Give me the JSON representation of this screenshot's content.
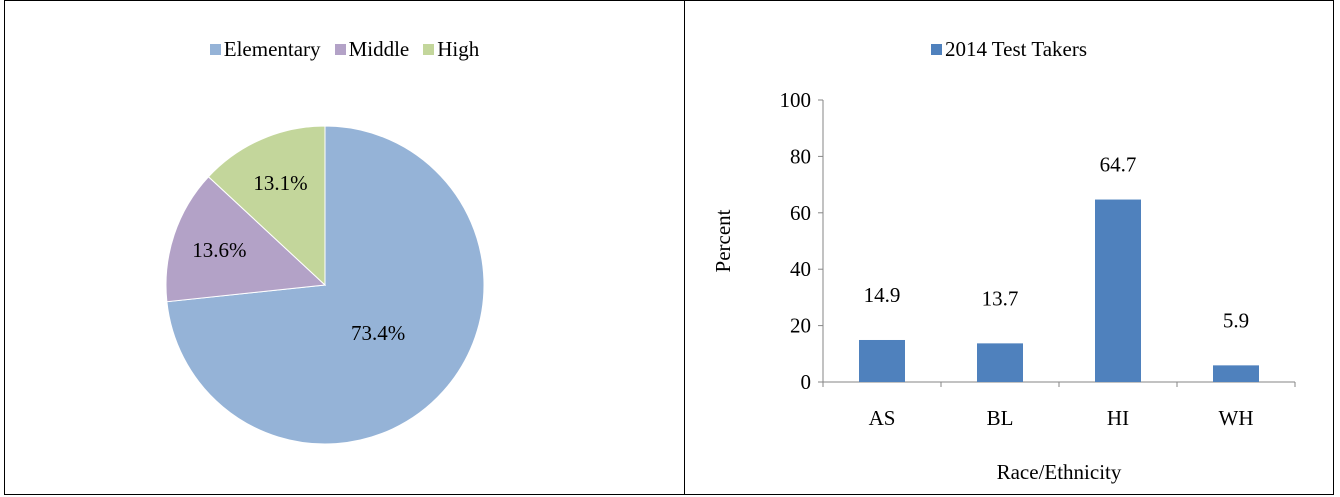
{
  "chart_data": [
    {
      "type": "pie",
      "title": "",
      "categories": [
        "Elementary",
        "Middle",
        "High"
      ],
      "values": [
        73.4,
        13.6,
        13.1
      ],
      "labels": [
        "73.4%",
        "13.6%",
        "13.1%"
      ],
      "colors": [
        "#95b3d7",
        "#b3a2c7",
        "#c3d69b"
      ],
      "legend_position": "top",
      "legend": [
        {
          "label": "Elementary",
          "color": "#95b3d7"
        },
        {
          "label": "Middle",
          "color": "#b3a2c7"
        },
        {
          "label": "High",
          "color": "#c3d69b"
        }
      ]
    },
    {
      "type": "bar",
      "title": "",
      "categories": [
        "AS",
        "BL",
        "HI",
        "WH"
      ],
      "series": [
        {
          "name": "2014 Test Takers",
          "values": [
            14.9,
            13.7,
            64.7,
            5.9
          ],
          "color": "#4f81bd"
        }
      ],
      "data_labels": [
        "14.9",
        "13.7",
        "64.7",
        "5.9"
      ],
      "xlabel": "Race/Ethnicity",
      "ylabel": "Percent",
      "ylim": [
        0,
        100
      ],
      "yticks": [
        "0",
        "20",
        "40",
        "60",
        "80",
        "100"
      ],
      "grid": false,
      "legend_position": "top"
    }
  ]
}
